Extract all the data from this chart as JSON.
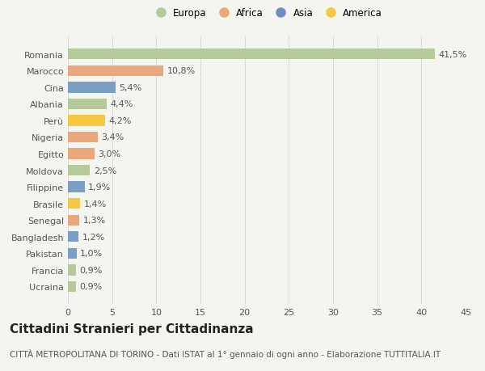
{
  "categories": [
    "Ucraina",
    "Francia",
    "Pakistan",
    "Bangladesh",
    "Senegal",
    "Brasile",
    "Filippine",
    "Moldova",
    "Egitto",
    "Nigeria",
    "Perù",
    "Albania",
    "Cina",
    "Marocco",
    "Romania"
  ],
  "values": [
    0.9,
    0.9,
    1.0,
    1.2,
    1.3,
    1.4,
    1.9,
    2.5,
    3.0,
    3.4,
    4.2,
    4.4,
    5.4,
    10.8,
    41.5
  ],
  "labels": [
    "0,9%",
    "0,9%",
    "1,0%",
    "1,2%",
    "1,3%",
    "1,4%",
    "1,9%",
    "2,5%",
    "3,0%",
    "3,4%",
    "4,2%",
    "4,4%",
    "5,4%",
    "10,8%",
    "41,5%"
  ],
  "colors": [
    "#b5c99a",
    "#b5c99a",
    "#7b9ec4",
    "#7b9ec4",
    "#e8a87c",
    "#f5c842",
    "#7b9ec4",
    "#b5c99a",
    "#e8a87c",
    "#e8a87c",
    "#f5c842",
    "#b5c99a",
    "#7b9ec4",
    "#e8a87c",
    "#b5c99a"
  ],
  "legend_labels": [
    "Europa",
    "Africa",
    "Asia",
    "America"
  ],
  "legend_colors": [
    "#b5c99a",
    "#e8a87c",
    "#6b8fbf",
    "#f5c842"
  ],
  "title": "Cittadini Stranieri per Cittadinanza",
  "subtitle": "CITTÀ METROPOLITANA DI TORINO - Dati ISTAT al 1° gennaio di ogni anno - Elaborazione TUTTITALIA.IT",
  "xlim": [
    0,
    45
  ],
  "xticks": [
    0,
    5,
    10,
    15,
    20,
    25,
    30,
    35,
    40,
    45
  ],
  "background_color": "#f5f5f0",
  "grid_color": "#d8d8d8",
  "text_color": "#555555",
  "title_fontsize": 11,
  "subtitle_fontsize": 7.5,
  "label_fontsize": 8,
  "tick_fontsize": 8,
  "legend_fontsize": 8.5
}
